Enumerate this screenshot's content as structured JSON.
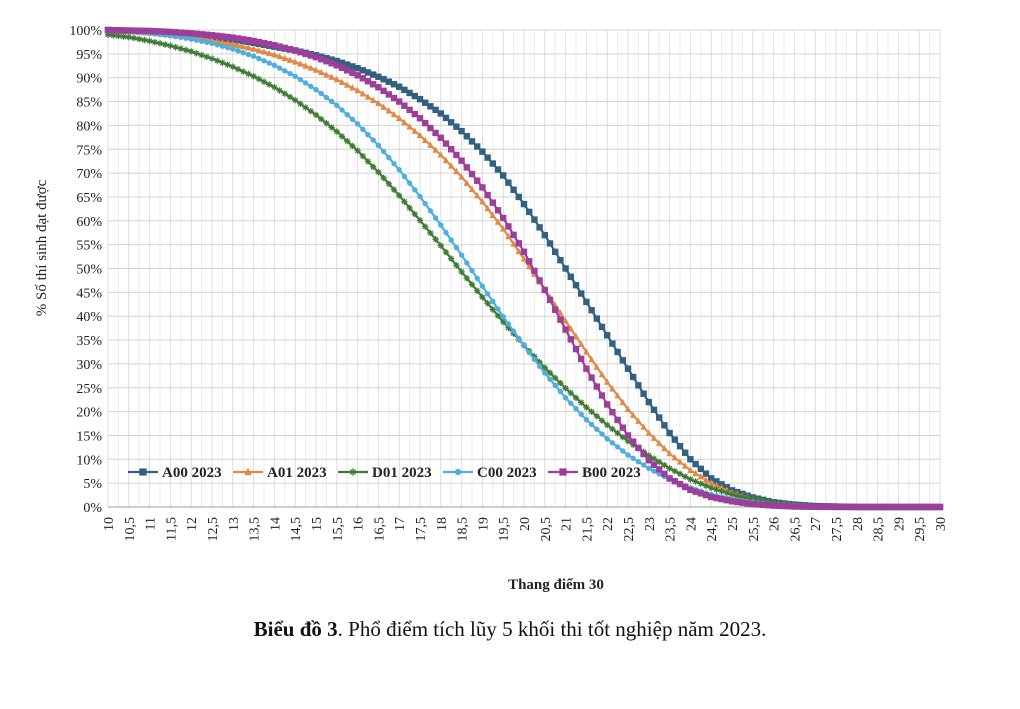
{
  "chart_data": {
    "type": "line",
    "xlabel": "Thang điểm 30",
    "ylabel": "% Số thí sinh đạt được",
    "xlim": [
      10,
      30
    ],
    "ylim": [
      0,
      100
    ],
    "x_ticks": [
      "10",
      "10,5",
      "11",
      "11,5",
      "12",
      "12,5",
      "13",
      "13,5",
      "14",
      "14,5",
      "15",
      "15,5",
      "16",
      "16,5",
      "17",
      "17,5",
      "18",
      "18,5",
      "19",
      "19,5",
      "20",
      "20,5",
      "21",
      "21,5",
      "22",
      "22,5",
      "23",
      "23,5",
      "24",
      "24,5",
      "25",
      "25,5",
      "26",
      "26,5",
      "27",
      "27,5",
      "28",
      "28,5",
      "29",
      "29,5",
      "30"
    ],
    "y_ticks": [
      "0%",
      "5%",
      "10%",
      "15%",
      "20%",
      "25%",
      "30%",
      "35%",
      "40%",
      "45%",
      "50%",
      "55%",
      "60%",
      "65%",
      "70%",
      "75%",
      "80%",
      "85%",
      "90%",
      "95%",
      "100%"
    ],
    "grid": true,
    "legend_position": "bottom-left",
    "x": [
      10,
      10.5,
      11,
      11.5,
      12,
      12.5,
      13,
      13.5,
      14,
      14.5,
      15,
      15.5,
      16,
      16.5,
      17,
      17.5,
      18,
      18.5,
      19,
      19.5,
      20,
      20.5,
      21,
      21.5,
      22,
      22.5,
      23,
      23.5,
      24,
      24.5,
      25,
      25.5,
      26,
      26.5,
      27,
      27.5,
      28,
      28.5,
      29,
      29.5,
      30
    ],
    "series": [
      {
        "name": "A00 2023",
        "color": "#33607f",
        "marker": "square",
        "values": [
          100,
          99.8,
          99.6,
          99.3,
          99,
          98.5,
          98,
          97.3,
          96.5,
          95.7,
          94.7,
          93.5,
          92,
          90.2,
          88.1,
          85.5,
          82.5,
          78.8,
          74.5,
          69.5,
          63.5,
          57,
          50,
          43,
          36,
          29,
          22,
          15.5,
          10,
          6,
          3.5,
          2,
          1,
          0.5,
          0.2,
          0.1,
          0,
          0,
          0,
          0,
          0
        ]
      },
      {
        "name": "A01 2023",
        "color": "#e08a4a",
        "marker": "triangle",
        "values": [
          100,
          99.7,
          99.4,
          99,
          98.5,
          97.8,
          97,
          96,
          94.8,
          93.3,
          91.6,
          89.6,
          87.3,
          84.6,
          81.5,
          77.9,
          73.8,
          69.2,
          64,
          58.3,
          52,
          45.6,
          39,
          32.5,
          26.2,
          20.5,
          15.5,
          11.2,
          7.7,
          5,
          3,
          1.7,
          0.9,
          0.4,
          0.2,
          0.1,
          0,
          0,
          0,
          0,
          0
        ]
      },
      {
        "name": "D01 2023",
        "color": "#3f7a35",
        "marker": "star",
        "values": [
          99,
          98.5,
          97.7,
          96.7,
          95.5,
          94,
          92.3,
          90.3,
          88,
          85.3,
          82.2,
          78.7,
          74.7,
          70.2,
          65.3,
          60.1,
          54.8,
          49.3,
          44,
          38.8,
          33.9,
          29.2,
          24.9,
          20.9,
          17.2,
          13.8,
          10.8,
          8.1,
          5.8,
          4,
          2.6,
          1.6,
          0.9,
          0.5,
          0.2,
          0.1,
          0,
          0,
          0,
          0,
          0
        ]
      },
      {
        "name": "C00 2023",
        "color": "#4faede",
        "marker": "circle",
        "values": [
          100,
          99.7,
          99.3,
          98.8,
          98.1,
          97.2,
          96,
          94.5,
          92.6,
          90.3,
          87.5,
          84.2,
          80.3,
          75.8,
          70.7,
          65.1,
          59.1,
          52.8,
          46.3,
          39.9,
          33.8,
          28.1,
          22.9,
          18.3,
          14.3,
          10.9,
          8.1,
          5.8,
          4,
          2.6,
          1.6,
          1,
          0.5,
          0.3,
          0.1,
          0,
          0,
          0,
          0,
          0,
          0
        ]
      },
      {
        "name": "B00 2023",
        "color": "#9b3f9b",
        "marker": "square",
        "values": [
          100,
          99.9,
          99.8,
          99.6,
          99.3,
          98.9,
          98.4,
          97.7,
          96.8,
          95.7,
          94.3,
          92.6,
          90.5,
          88,
          85,
          81.5,
          77.4,
          72.6,
          67,
          60.6,
          53.5,
          45.5,
          37.2,
          29,
          21.5,
          15,
          9.8,
          6,
          3.6,
          2.1,
          1.2,
          0.6,
          0.3,
          0.1,
          0.05,
          0,
          0,
          0,
          0,
          0,
          0
        ]
      }
    ]
  },
  "caption": {
    "bold": "Biểu đồ 3",
    "text": ". Phổ điểm tích lũy 5 khối thi tốt nghiệp năm 2023."
  }
}
